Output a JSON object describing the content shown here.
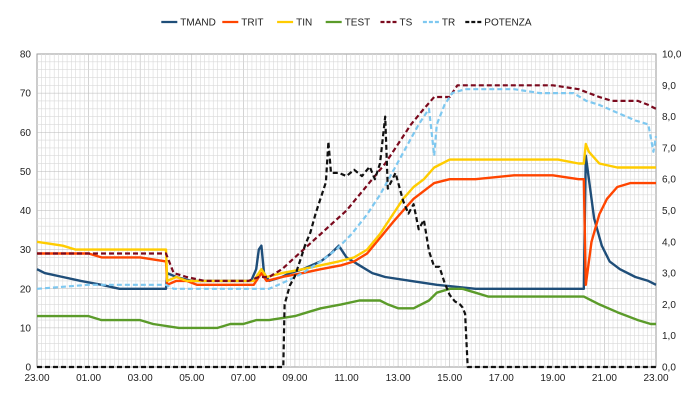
{
  "chart_data": {
    "type": "line",
    "x_ticks": [
      "23.00",
      "01.00",
      "03.00",
      "05.00",
      "07.00",
      "09.00",
      "11.00",
      "13.00",
      "15.00",
      "17.00",
      "19.00",
      "21.00",
      "23.00"
    ],
    "y_left": {
      "ylim": [
        0,
        80
      ],
      "ticks": [
        "0",
        "10",
        "20",
        "30",
        "40",
        "50",
        "60",
        "70",
        "80"
      ]
    },
    "y_right": {
      "ylim": [
        0,
        10
      ],
      "ticks": [
        "0,0",
        "1,0",
        "2,0",
        "3,0",
        "4,0",
        "5,0",
        "6,0",
        "7,0",
        "8,0",
        "9,0",
        "10,0"
      ]
    },
    "grid": true,
    "legend_position": "top",
    "series": [
      {
        "name": "TMAND",
        "axis": "left",
        "color": "#1f4e79",
        "dash": false,
        "points": [
          [
            23.0,
            25
          ],
          [
            23.3,
            24
          ],
          [
            0.0,
            23
          ],
          [
            0.7,
            22
          ],
          [
            1.5,
            21
          ],
          [
            2.2,
            20
          ],
          [
            4.0,
            20
          ],
          [
            4.05,
            24
          ],
          [
            4.4,
            23
          ],
          [
            5.0,
            22
          ],
          [
            6.0,
            22
          ],
          [
            7.3,
            22
          ],
          [
            7.5,
            25
          ],
          [
            7.6,
            30
          ],
          [
            7.7,
            31
          ],
          [
            7.8,
            24
          ],
          [
            8.0,
            22
          ],
          [
            8.5,
            23
          ],
          [
            8.8,
            24
          ],
          [
            9.3,
            25
          ],
          [
            10.0,
            27
          ],
          [
            10.4,
            29
          ],
          [
            10.7,
            31
          ],
          [
            11.0,
            28
          ],
          [
            11.5,
            26
          ],
          [
            12.0,
            24
          ],
          [
            12.5,
            23
          ],
          [
            13.5,
            22
          ],
          [
            14.5,
            21
          ],
          [
            16.0,
            20
          ],
          [
            19.2,
            20
          ],
          [
            20.2,
            20
          ],
          [
            20.28,
            54
          ],
          [
            20.4,
            48
          ],
          [
            20.6,
            38
          ],
          [
            20.9,
            31
          ],
          [
            21.2,
            27
          ],
          [
            21.6,
            25
          ],
          [
            22.2,
            23
          ],
          [
            22.7,
            22
          ],
          [
            23.0,
            21
          ]
        ]
      },
      {
        "name": "TRIT",
        "axis": "left",
        "color": "#ff4500",
        "dash": false,
        "points": [
          [
            23.0,
            29
          ],
          [
            1.0,
            29
          ],
          [
            1.5,
            28
          ],
          [
            3.0,
            28
          ],
          [
            4.0,
            27
          ],
          [
            4.05,
            21
          ],
          [
            4.4,
            22
          ],
          [
            4.8,
            22
          ],
          [
            5.2,
            21
          ],
          [
            7.4,
            21
          ],
          [
            7.7,
            24
          ],
          [
            7.9,
            22
          ],
          [
            8.5,
            23
          ],
          [
            9.3,
            24
          ],
          [
            10.0,
            25
          ],
          [
            10.8,
            26
          ],
          [
            11.3,
            27
          ],
          [
            11.8,
            29
          ],
          [
            12.3,
            33
          ],
          [
            12.8,
            37
          ],
          [
            13.2,
            40
          ],
          [
            13.6,
            43
          ],
          [
            14.0,
            45
          ],
          [
            14.4,
            47
          ],
          [
            15.0,
            48
          ],
          [
            16.0,
            48
          ],
          [
            17.5,
            49
          ],
          [
            19.0,
            49
          ],
          [
            20.0,
            48
          ],
          [
            20.2,
            48
          ],
          [
            20.28,
            21
          ],
          [
            20.5,
            32
          ],
          [
            20.8,
            39
          ],
          [
            21.1,
            43
          ],
          [
            21.5,
            46
          ],
          [
            22.0,
            47
          ],
          [
            23.0,
            47
          ]
        ]
      },
      {
        "name": "TIN",
        "axis": "left",
        "color": "#ffcc00",
        "dash": false,
        "points": [
          [
            23.0,
            32
          ],
          [
            0.0,
            31
          ],
          [
            0.5,
            30
          ],
          [
            3.0,
            30
          ],
          [
            4.0,
            30
          ],
          [
            4.05,
            22
          ],
          [
            4.4,
            23
          ],
          [
            4.8,
            22
          ],
          [
            5.3,
            22
          ],
          [
            7.4,
            22
          ],
          [
            7.7,
            25
          ],
          [
            7.9,
            23
          ],
          [
            8.5,
            24
          ],
          [
            9.3,
            25
          ],
          [
            10.0,
            26
          ],
          [
            10.7,
            27
          ],
          [
            11.3,
            28
          ],
          [
            11.8,
            30
          ],
          [
            12.3,
            34
          ],
          [
            12.8,
            39
          ],
          [
            13.2,
            43
          ],
          [
            13.6,
            46
          ],
          [
            14.0,
            48
          ],
          [
            14.4,
            51
          ],
          [
            15.0,
            53
          ],
          [
            16.5,
            53
          ],
          [
            18.5,
            53
          ],
          [
            19.2,
            53
          ],
          [
            20.0,
            52
          ],
          [
            20.2,
            52
          ],
          [
            20.28,
            57
          ],
          [
            20.4,
            55
          ],
          [
            20.8,
            52
          ],
          [
            21.5,
            51
          ],
          [
            23.0,
            51
          ]
        ]
      },
      {
        "name": "TEST",
        "axis": "left",
        "color": "#5b9b2a",
        "dash": false,
        "points": [
          [
            23.0,
            13
          ],
          [
            1.0,
            13
          ],
          [
            1.5,
            12
          ],
          [
            3.0,
            12
          ],
          [
            3.5,
            11
          ],
          [
            4.5,
            10
          ],
          [
            6.0,
            10
          ],
          [
            6.5,
            11
          ],
          [
            7.0,
            11
          ],
          [
            7.5,
            12
          ],
          [
            8.0,
            12
          ],
          [
            9.0,
            13
          ],
          [
            9.5,
            14
          ],
          [
            10.0,
            15
          ],
          [
            10.8,
            16
          ],
          [
            11.5,
            17
          ],
          [
            12.3,
            17
          ],
          [
            12.6,
            16
          ],
          [
            13.0,
            15
          ],
          [
            13.6,
            15
          ],
          [
            14.2,
            17
          ],
          [
            14.5,
            19
          ],
          [
            15.0,
            20
          ],
          [
            15.5,
            20
          ],
          [
            16.0,
            19
          ],
          [
            16.5,
            18
          ],
          [
            17.0,
            18
          ],
          [
            18.0,
            18
          ],
          [
            19.2,
            18
          ],
          [
            20.2,
            18
          ],
          [
            20.8,
            16
          ],
          [
            21.5,
            14
          ],
          [
            22.3,
            12
          ],
          [
            22.8,
            11
          ],
          [
            23.0,
            11
          ]
        ]
      },
      {
        "name": "TS",
        "axis": "left",
        "color": "#7b0a1e",
        "dash": true,
        "points": [
          [
            23.0,
            29
          ],
          [
            1.0,
            29
          ],
          [
            3.0,
            29
          ],
          [
            4.0,
            29
          ],
          [
            4.3,
            24
          ],
          [
            4.8,
            23
          ],
          [
            5.5,
            22
          ],
          [
            7.2,
            22
          ],
          [
            7.6,
            23
          ],
          [
            8.0,
            23
          ],
          [
            8.5,
            25
          ],
          [
            9.0,
            28
          ],
          [
            9.5,
            31
          ],
          [
            10.0,
            34
          ],
          [
            10.5,
            37
          ],
          [
            11.0,
            40
          ],
          [
            11.5,
            44
          ],
          [
            12.0,
            48
          ],
          [
            12.5,
            52
          ],
          [
            13.0,
            57
          ],
          [
            13.5,
            62
          ],
          [
            14.0,
            66
          ],
          [
            14.4,
            69
          ],
          [
            15.0,
            69
          ],
          [
            15.3,
            72
          ],
          [
            16.5,
            72
          ],
          [
            18.0,
            72
          ],
          [
            19.0,
            72
          ],
          [
            20.0,
            71
          ],
          [
            20.8,
            69
          ],
          [
            21.3,
            68
          ],
          [
            22.3,
            68
          ],
          [
            22.7,
            67
          ],
          [
            23.0,
            66
          ]
        ]
      },
      {
        "name": "TR",
        "axis": "left",
        "color": "#7ec8f0",
        "dash": true,
        "points": [
          [
            23.0,
            20
          ],
          [
            1.0,
            21
          ],
          [
            3.0,
            21
          ],
          [
            4.0,
            21
          ],
          [
            4.3,
            20
          ],
          [
            5.0,
            20
          ],
          [
            7.2,
            20
          ],
          [
            8.0,
            20
          ],
          [
            8.7,
            22
          ],
          [
            9.3,
            24
          ],
          [
            10.0,
            27
          ],
          [
            10.6,
            30
          ],
          [
            11.2,
            34
          ],
          [
            11.8,
            39
          ],
          [
            12.3,
            44
          ],
          [
            12.8,
            50
          ],
          [
            13.3,
            56
          ],
          [
            13.8,
            62
          ],
          [
            14.2,
            66
          ],
          [
            14.4,
            54
          ],
          [
            14.5,
            62
          ],
          [
            14.8,
            67
          ],
          [
            15.1,
            70
          ],
          [
            15.6,
            71
          ],
          [
            17.5,
            71
          ],
          [
            18.5,
            70
          ],
          [
            19.8,
            70
          ],
          [
            20.3,
            68
          ],
          [
            20.8,
            67
          ],
          [
            21.5,
            65
          ],
          [
            22.2,
            63
          ],
          [
            22.7,
            62
          ],
          [
            22.9,
            55
          ],
          [
            23.0,
            59
          ]
        ]
      },
      {
        "name": "POTENZA",
        "axis": "right",
        "color": "#111111",
        "dash": true,
        "points": [
          [
            23.0,
            0.0
          ],
          [
            8.55,
            0.0
          ],
          [
            8.6,
            2.0
          ],
          [
            8.8,
            2.6
          ],
          [
            9.0,
            2.9
          ],
          [
            9.2,
            3.4
          ],
          [
            9.4,
            3.9
          ],
          [
            9.6,
            4.3
          ],
          [
            9.8,
            4.9
          ],
          [
            10.0,
            5.4
          ],
          [
            10.2,
            5.9
          ],
          [
            10.3,
            7.2
          ],
          [
            10.4,
            6.2
          ],
          [
            10.7,
            6.2
          ],
          [
            11.0,
            6.1
          ],
          [
            11.3,
            6.3
          ],
          [
            11.6,
            6.1
          ],
          [
            11.9,
            6.4
          ],
          [
            12.1,
            6.0
          ],
          [
            12.3,
            6.5
          ],
          [
            12.5,
            8.0
          ],
          [
            12.6,
            5.7
          ],
          [
            12.9,
            6.2
          ],
          [
            13.2,
            5.3
          ],
          [
            13.4,
            4.9
          ],
          [
            13.6,
            5.2
          ],
          [
            13.8,
            4.4
          ],
          [
            14.0,
            4.7
          ],
          [
            14.2,
            3.7
          ],
          [
            14.4,
            3.2
          ],
          [
            14.6,
            3.2
          ],
          [
            14.8,
            2.7
          ],
          [
            15.0,
            2.3
          ],
          [
            15.2,
            2.1
          ],
          [
            15.4,
            2.0
          ],
          [
            15.5,
            1.9
          ],
          [
            15.6,
            1.7
          ],
          [
            15.7,
            0.0
          ],
          [
            23.0,
            0.0
          ]
        ]
      }
    ]
  }
}
